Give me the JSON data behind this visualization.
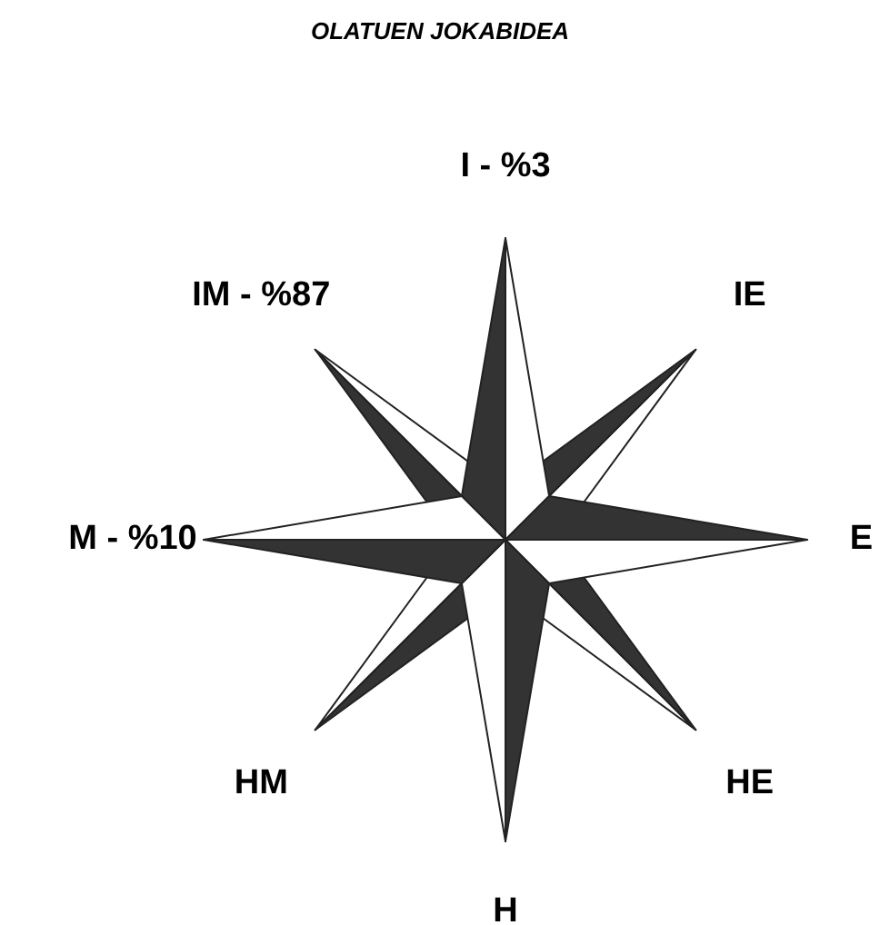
{
  "chart_data": {
    "type": "other",
    "title": "OLATUEN JOKABIDEA",
    "categories": [
      "I -",
      "IE",
      "E",
      "HE",
      "H",
      "HM",
      "M -",
      "IM -"
    ],
    "values": [
      3,
      null,
      null,
      null,
      null,
      null,
      10,
      87
    ],
    "value_labels": [
      "%3",
      null,
      null,
      null,
      null,
      null,
      "%10",
      "%87"
    ]
  }
}
